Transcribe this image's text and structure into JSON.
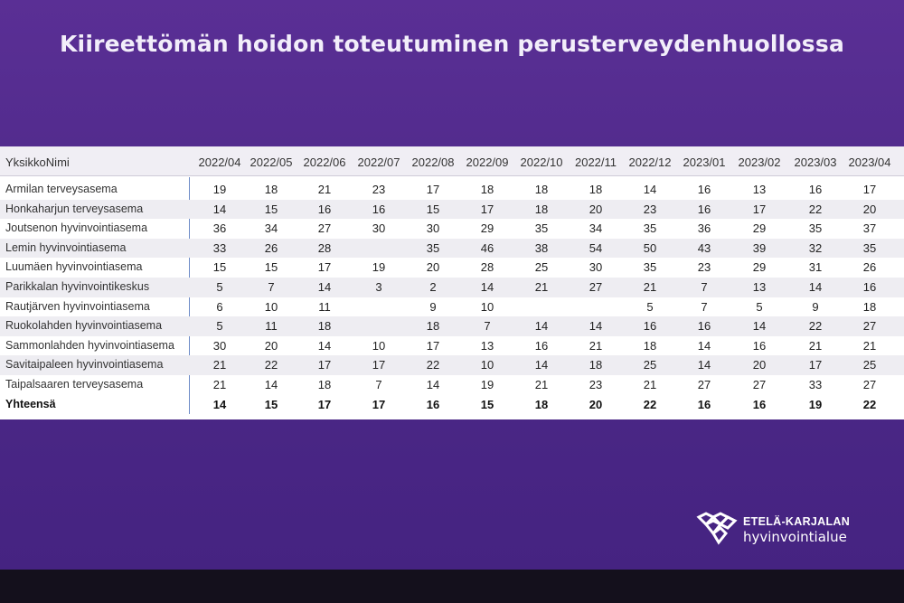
{
  "title": "Kiireettömän hoidon toteutuminen perusterveydenhuollossa",
  "table": {
    "name_header": "YksikkoNimi",
    "columns": [
      "2022/04",
      "2022/05",
      "2022/06",
      "2022/07",
      "2022/08",
      "2022/09",
      "2022/10",
      "2022/11",
      "2022/12",
      "2023/01",
      "2023/02",
      "2023/03",
      "2023/04"
    ],
    "rows": [
      {
        "name": "Armilan terveysasema",
        "values": [
          "19",
          "18",
          "21",
          "23",
          "17",
          "18",
          "18",
          "18",
          "14",
          "16",
          "13",
          "16",
          "17"
        ]
      },
      {
        "name": "Honkaharjun terveysasema",
        "values": [
          "14",
          "15",
          "16",
          "16",
          "15",
          "17",
          "18",
          "20",
          "23",
          "16",
          "17",
          "22",
          "20"
        ]
      },
      {
        "name": "Joutsenon hyvinvointiasema",
        "values": [
          "36",
          "34",
          "27",
          "30",
          "30",
          "29",
          "35",
          "34",
          "35",
          "36",
          "29",
          "35",
          "37"
        ]
      },
      {
        "name": "Lemin hyvinvointiasema",
        "values": [
          "33",
          "26",
          "28",
          "",
          "35",
          "46",
          "38",
          "54",
          "50",
          "43",
          "39",
          "32",
          "35"
        ]
      },
      {
        "name": "Luumäen hyvinvointiasema",
        "values": [
          "15",
          "15",
          "17",
          "19",
          "20",
          "28",
          "25",
          "30",
          "35",
          "23",
          "29",
          "31",
          "26"
        ]
      },
      {
        "name": "Parikkalan hyvinvointikeskus",
        "values": [
          "5",
          "7",
          "14",
          "3",
          "2",
          "14",
          "21",
          "27",
          "21",
          "7",
          "13",
          "14",
          "16"
        ]
      },
      {
        "name": "Rautjärven hyvinvointiasema",
        "values": [
          "6",
          "10",
          "11",
          "",
          "9",
          "10",
          "",
          "",
          "5",
          "7",
          "5",
          "9",
          "18"
        ]
      },
      {
        "name": "Ruokolahden hyvinvointiasema",
        "values": [
          "5",
          "11",
          "18",
          "",
          "18",
          "7",
          "14",
          "14",
          "16",
          "16",
          "14",
          "22",
          "27"
        ]
      },
      {
        "name": "Sammonlahden hyvinvointiasema",
        "values": [
          "30",
          "20",
          "14",
          "10",
          "17",
          "13",
          "16",
          "21",
          "18",
          "14",
          "16",
          "21",
          "21"
        ]
      },
      {
        "name": "Savitaipaleen hyvinvointiasema",
        "values": [
          "21",
          "22",
          "17",
          "17",
          "22",
          "10",
          "14",
          "18",
          "25",
          "14",
          "20",
          "17",
          "25"
        ]
      },
      {
        "name": "Taipalsaaren terveysasema",
        "values": [
          "21",
          "14",
          "18",
          "7",
          "14",
          "19",
          "21",
          "23",
          "21",
          "27",
          "27",
          "33",
          "27"
        ]
      }
    ],
    "total": {
      "name": "Yhteensä",
      "values": [
        "14",
        "15",
        "17",
        "17",
        "16",
        "15",
        "18",
        "20",
        "22",
        "16",
        "16",
        "19",
        "22"
      ]
    }
  },
  "logo": {
    "line1": "ETELÄ-KARJALAN",
    "line2": "hyvinvointialue",
    "icon": "hearts-logo-icon",
    "color": "#ffffff"
  },
  "colors": {
    "background": "#4f2a8a",
    "accent_line": "#6d8bc7"
  }
}
